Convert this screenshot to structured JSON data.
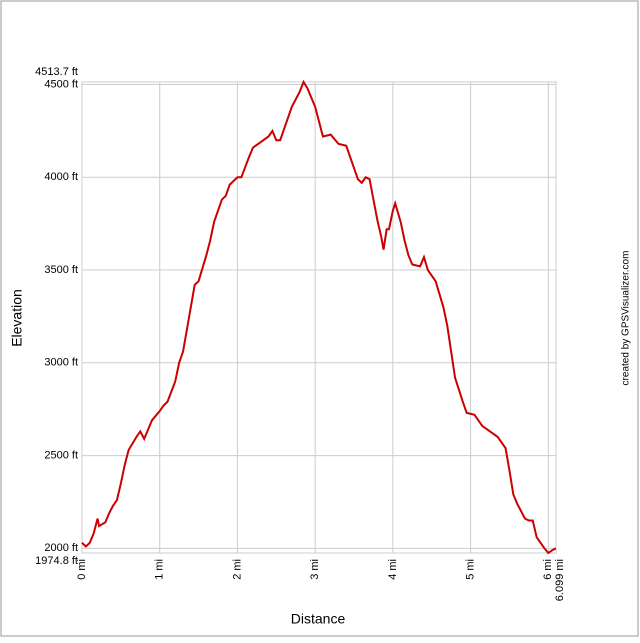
{
  "chart_data": {
    "type": "line",
    "x_label": "Distance",
    "y_label": "Elevation",
    "credit": "created by GPSVisualizer.com",
    "xlim": [
      0,
      6.099
    ],
    "xticks": [
      {
        "value": 0,
        "label": "0 mi"
      },
      {
        "value": 1,
        "label": "1 mi"
      },
      {
        "value": 2,
        "label": "2 mi"
      },
      {
        "value": 3,
        "label": "3 mi"
      },
      {
        "value": 4,
        "label": "4 mi"
      },
      {
        "value": 5,
        "label": "5 mi"
      },
      {
        "value": 6,
        "label": "6 mi"
      },
      {
        "value": 6.099,
        "label": "6.099 mi"
      }
    ],
    "ylim": [
      1974.8,
      4513.7
    ],
    "yticks": [
      {
        "value": 1974.8,
        "label": "1974.8 ft"
      },
      {
        "value": 2000,
        "label": "2000 ft"
      },
      {
        "value": 2500,
        "label": "2500 ft"
      },
      {
        "value": 3000,
        "label": "3000 ft"
      },
      {
        "value": 3500,
        "label": "3500 ft"
      },
      {
        "value": 4000,
        "label": "4000 ft"
      },
      {
        "value": 4500,
        "label": "4500 ft"
      },
      {
        "value": 4513.7,
        "label": "4513.7 ft"
      }
    ],
    "grid": true,
    "series": [
      {
        "color": "#cc0000",
        "x": [
          0,
          0.05,
          0.1,
          0.15,
          0.2,
          0.22,
          0.3,
          0.35,
          0.4,
          0.45,
          0.5,
          0.55,
          0.6,
          0.7,
          0.75,
          0.8,
          0.85,
          0.9,
          1.0,
          1.05,
          1.1,
          1.2,
          1.25,
          1.3,
          1.35,
          1.4,
          1.45,
          1.5,
          1.6,
          1.65,
          1.7,
          1.75,
          1.8,
          1.85,
          1.9,
          2.0,
          2.05,
          2.15,
          2.2,
          2.3,
          2.4,
          2.45,
          2.5,
          2.55,
          2.6,
          2.7,
          2.8,
          2.85,
          2.9,
          3.0,
          3.05,
          3.1,
          3.2,
          3.3,
          3.4,
          3.5,
          3.55,
          3.6,
          3.65,
          3.7,
          3.8,
          3.85,
          3.88,
          3.92,
          3.95,
          4.0,
          4.03,
          4.1,
          4.15,
          4.2,
          4.25,
          4.35,
          4.4,
          4.45,
          4.55,
          4.65,
          4.7,
          4.75,
          4.8,
          4.9,
          4.95,
          5.05,
          5.15,
          5.25,
          5.35,
          5.45,
          5.5,
          5.55,
          5.6,
          5.7,
          5.75,
          5.8,
          5.85,
          5.9,
          5.95,
          6.0,
          6.05,
          6.099
        ],
        "values": [
          2030,
          2010,
          2030,
          2080,
          2160,
          2120,
          2140,
          2190,
          2230,
          2260,
          2350,
          2450,
          2530,
          2600,
          2630,
          2590,
          2640,
          2690,
          2740,
          2770,
          2790,
          2900,
          3000,
          3060,
          3180,
          3300,
          3420,
          3440,
          3580,
          3660,
          3760,
          3820,
          3880,
          3900,
          3960,
          4000,
          4000,
          4110,
          4160,
          4190,
          4220,
          4250,
          4200,
          4200,
          4260,
          4380,
          4460,
          4513.7,
          4480,
          4380,
          4300,
          4220,
          4230,
          4180,
          4170,
          4050,
          3990,
          3970,
          4000,
          3990,
          3770,
          3680,
          3610,
          3720,
          3720,
          3820,
          3860,
          3760,
          3660,
          3580,
          3530,
          3520,
          3570,
          3500,
          3440,
          3300,
          3200,
          3060,
          2920,
          2790,
          2730,
          2720,
          2660,
          2630,
          2600,
          2540,
          2420,
          2290,
          2240,
          2160,
          2150,
          2150,
          2060,
          2030,
          2000,
          1974.8,
          1990,
          2000
        ]
      }
    ]
  }
}
